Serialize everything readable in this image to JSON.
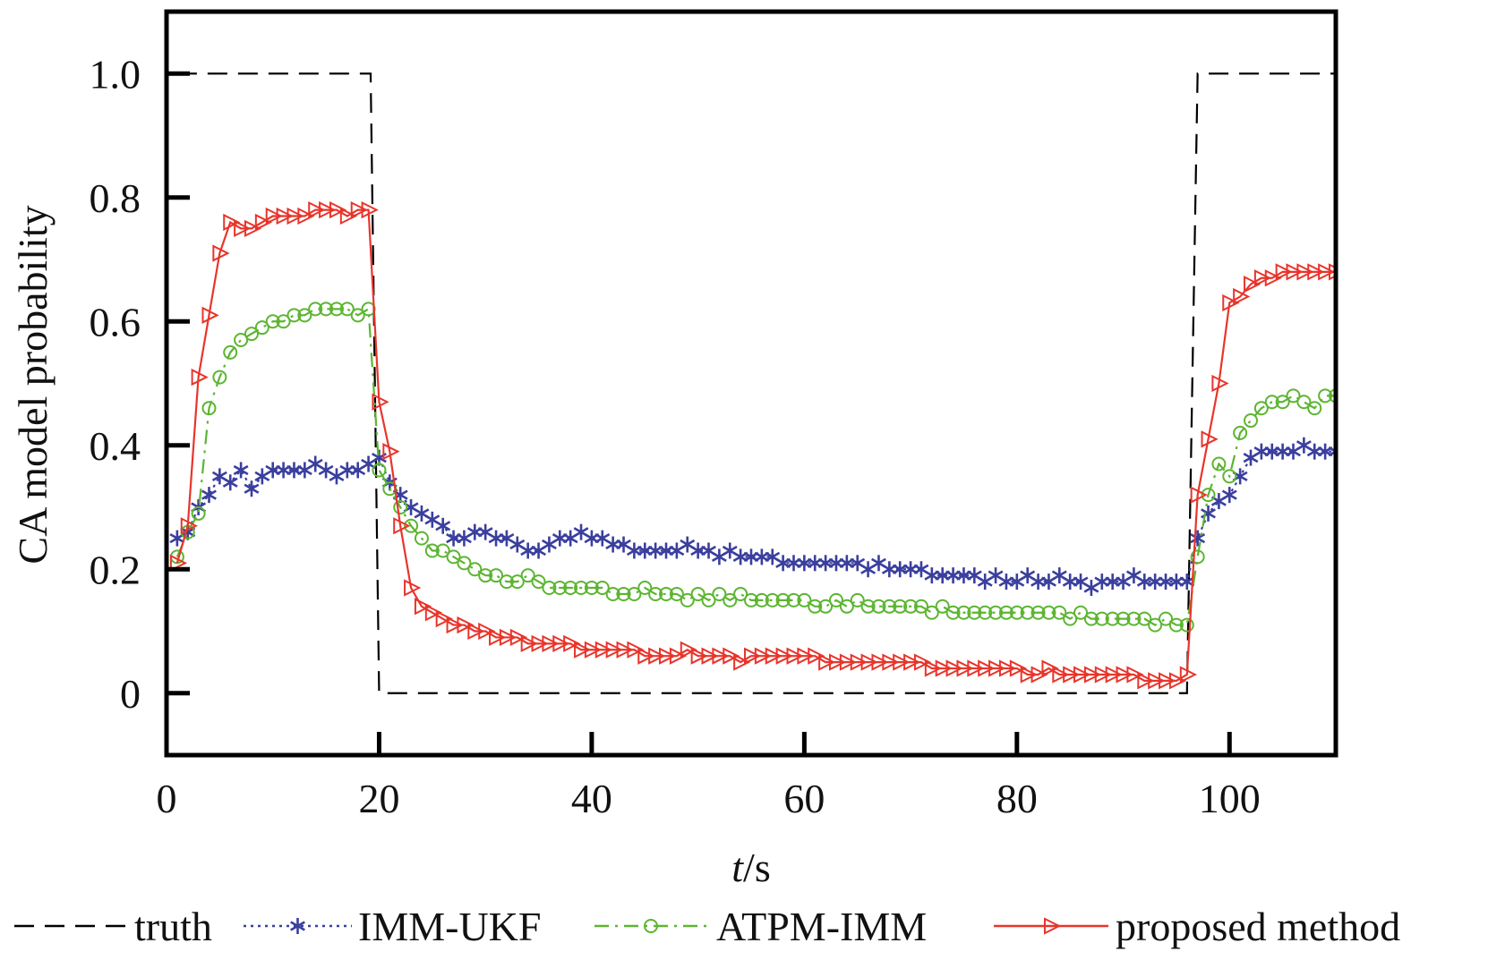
{
  "chart_data": {
    "type": "line",
    "xlabel_italic": "t",
    "xlabel_rest": "/s",
    "ylabel": "CA model probability",
    "xlim": [
      0,
      110
    ],
    "ylim": [
      -0.1,
      1.1
    ],
    "xticks": [
      0,
      20,
      40,
      60,
      80,
      100
    ],
    "xtick_labels": [
      "0",
      "20",
      "40",
      "60",
      "80",
      "100"
    ],
    "yticks": [
      0,
      0.2,
      0.4,
      0.6,
      0.8,
      1.0
    ],
    "ytick_labels": [
      "0",
      "0.2",
      "0.4",
      "0.6",
      "0.8",
      "1.0"
    ],
    "grid": false,
    "legend_position": "bottom",
    "series": [
      {
        "name": "truth",
        "color": "#000000",
        "style": "dashed",
        "marker": "none",
        "x": [
          1,
          19.2,
          20,
          96,
          97,
          110
        ],
        "y": [
          1.0,
          1.0,
          0.0,
          0.0,
          1.0,
          1.0
        ]
      },
      {
        "name": "IMM-UKF",
        "color": "#3a3f9e",
        "style": "dotted",
        "marker": "star",
        "x": [
          1,
          2,
          3,
          4,
          5,
          6,
          7,
          8,
          9,
          10,
          11,
          12,
          13,
          14,
          15,
          16,
          17,
          18,
          19,
          20,
          21,
          22,
          23,
          24,
          25,
          26,
          27,
          28,
          29,
          30,
          31,
          32,
          33,
          34,
          35,
          36,
          37,
          38,
          39,
          40,
          41,
          42,
          43,
          44,
          45,
          46,
          47,
          48,
          49,
          50,
          51,
          52,
          53,
          54,
          55,
          56,
          57,
          58,
          59,
          60,
          61,
          62,
          63,
          64,
          65,
          66,
          67,
          68,
          69,
          70,
          71,
          72,
          73,
          74,
          75,
          76,
          77,
          78,
          79,
          80,
          81,
          82,
          83,
          84,
          85,
          86,
          87,
          88,
          89,
          90,
          91,
          92,
          93,
          94,
          95,
          96,
          97,
          98,
          99,
          100,
          101,
          102,
          103,
          104,
          105,
          106,
          107,
          108,
          109,
          110
        ],
        "y": [
          0.25,
          0.26,
          0.3,
          0.32,
          0.35,
          0.34,
          0.36,
          0.33,
          0.35,
          0.36,
          0.36,
          0.36,
          0.36,
          0.37,
          0.36,
          0.35,
          0.36,
          0.36,
          0.37,
          0.38,
          0.34,
          0.32,
          0.3,
          0.29,
          0.28,
          0.27,
          0.25,
          0.25,
          0.26,
          0.26,
          0.25,
          0.25,
          0.24,
          0.23,
          0.23,
          0.24,
          0.25,
          0.25,
          0.26,
          0.25,
          0.25,
          0.24,
          0.24,
          0.23,
          0.23,
          0.23,
          0.23,
          0.23,
          0.24,
          0.23,
          0.23,
          0.22,
          0.23,
          0.22,
          0.22,
          0.22,
          0.22,
          0.21,
          0.21,
          0.21,
          0.21,
          0.21,
          0.21,
          0.21,
          0.21,
          0.2,
          0.21,
          0.2,
          0.2,
          0.2,
          0.2,
          0.19,
          0.19,
          0.19,
          0.19,
          0.19,
          0.18,
          0.19,
          0.18,
          0.18,
          0.19,
          0.18,
          0.18,
          0.19,
          0.18,
          0.18,
          0.17,
          0.18,
          0.18,
          0.18,
          0.19,
          0.18,
          0.18,
          0.18,
          0.18,
          0.18,
          0.25,
          0.29,
          0.31,
          0.32,
          0.35,
          0.38,
          0.39,
          0.39,
          0.39,
          0.39,
          0.4,
          0.39,
          0.39,
          0.39
        ]
      },
      {
        "name": "ATPM-IMM",
        "color": "#5cb531",
        "style": "dashdot",
        "marker": "circle",
        "x": [
          1,
          2,
          3,
          4,
          5,
          6,
          7,
          8,
          9,
          10,
          11,
          12,
          13,
          14,
          15,
          16,
          17,
          18,
          19,
          20,
          21,
          22,
          23,
          24,
          25,
          26,
          27,
          28,
          29,
          30,
          31,
          32,
          33,
          34,
          35,
          36,
          37,
          38,
          39,
          40,
          41,
          42,
          43,
          44,
          45,
          46,
          47,
          48,
          49,
          50,
          51,
          52,
          53,
          54,
          55,
          56,
          57,
          58,
          59,
          60,
          61,
          62,
          63,
          64,
          65,
          66,
          67,
          68,
          69,
          70,
          71,
          72,
          73,
          74,
          75,
          76,
          77,
          78,
          79,
          80,
          81,
          82,
          83,
          84,
          85,
          86,
          87,
          88,
          89,
          90,
          91,
          92,
          93,
          94,
          95,
          96,
          97,
          98,
          99,
          100,
          101,
          102,
          103,
          104,
          105,
          106,
          107,
          108,
          109,
          110
        ],
        "y": [
          0.22,
          0.26,
          0.29,
          0.46,
          0.51,
          0.55,
          0.57,
          0.58,
          0.59,
          0.6,
          0.6,
          0.61,
          0.61,
          0.62,
          0.62,
          0.62,
          0.62,
          0.61,
          0.62,
          0.36,
          0.33,
          0.3,
          0.27,
          0.25,
          0.23,
          0.23,
          0.22,
          0.21,
          0.2,
          0.19,
          0.19,
          0.18,
          0.18,
          0.19,
          0.18,
          0.17,
          0.17,
          0.17,
          0.17,
          0.17,
          0.17,
          0.16,
          0.16,
          0.16,
          0.17,
          0.16,
          0.16,
          0.16,
          0.15,
          0.16,
          0.15,
          0.16,
          0.15,
          0.16,
          0.15,
          0.15,
          0.15,
          0.15,
          0.15,
          0.15,
          0.14,
          0.14,
          0.15,
          0.14,
          0.15,
          0.14,
          0.14,
          0.14,
          0.14,
          0.14,
          0.14,
          0.13,
          0.14,
          0.13,
          0.13,
          0.13,
          0.13,
          0.13,
          0.13,
          0.13,
          0.13,
          0.13,
          0.13,
          0.13,
          0.12,
          0.13,
          0.12,
          0.12,
          0.12,
          0.12,
          0.12,
          0.12,
          0.11,
          0.12,
          0.11,
          0.11,
          0.22,
          0.32,
          0.37,
          0.35,
          0.42,
          0.44,
          0.46,
          0.47,
          0.47,
          0.48,
          0.47,
          0.46,
          0.48,
          0.48
        ]
      },
      {
        "name": "proposed method",
        "color": "#e8352b",
        "style": "solid",
        "marker": "triangle-right",
        "x": [
          1,
          2,
          3,
          4,
          5,
          6,
          7,
          8,
          9,
          10,
          11,
          12,
          13,
          14,
          15,
          16,
          17,
          18,
          19,
          20,
          21,
          22,
          23,
          24,
          25,
          26,
          27,
          28,
          29,
          30,
          31,
          32,
          33,
          34,
          35,
          36,
          37,
          38,
          39,
          40,
          41,
          42,
          43,
          44,
          45,
          46,
          47,
          48,
          49,
          50,
          51,
          52,
          53,
          54,
          55,
          56,
          57,
          58,
          59,
          60,
          61,
          62,
          63,
          64,
          65,
          66,
          67,
          68,
          69,
          70,
          71,
          72,
          73,
          74,
          75,
          76,
          77,
          78,
          79,
          80,
          81,
          82,
          83,
          84,
          85,
          86,
          87,
          88,
          89,
          90,
          91,
          92,
          93,
          94,
          95,
          96,
          97,
          98,
          99,
          100,
          101,
          102,
          103,
          104,
          105,
          106,
          107,
          108,
          109,
          110
        ],
        "y": [
          0.21,
          0.27,
          0.51,
          0.61,
          0.71,
          0.76,
          0.75,
          0.75,
          0.76,
          0.77,
          0.77,
          0.77,
          0.77,
          0.78,
          0.78,
          0.78,
          0.77,
          0.78,
          0.78,
          0.47,
          0.39,
          0.27,
          0.17,
          0.14,
          0.13,
          0.12,
          0.11,
          0.11,
          0.1,
          0.1,
          0.09,
          0.09,
          0.09,
          0.08,
          0.08,
          0.08,
          0.08,
          0.08,
          0.07,
          0.07,
          0.07,
          0.07,
          0.07,
          0.07,
          0.06,
          0.06,
          0.06,
          0.06,
          0.07,
          0.06,
          0.06,
          0.06,
          0.06,
          0.05,
          0.06,
          0.06,
          0.06,
          0.06,
          0.06,
          0.06,
          0.06,
          0.05,
          0.05,
          0.05,
          0.05,
          0.05,
          0.05,
          0.05,
          0.05,
          0.05,
          0.05,
          0.04,
          0.04,
          0.04,
          0.04,
          0.04,
          0.04,
          0.04,
          0.04,
          0.04,
          0.03,
          0.03,
          0.04,
          0.03,
          0.03,
          0.03,
          0.03,
          0.03,
          0.03,
          0.03,
          0.03,
          0.02,
          0.02,
          0.02,
          0.02,
          0.03,
          0.32,
          0.41,
          0.5,
          0.63,
          0.64,
          0.66,
          0.67,
          0.67,
          0.68,
          0.68,
          0.68,
          0.68,
          0.68,
          0.68
        ]
      }
    ]
  }
}
